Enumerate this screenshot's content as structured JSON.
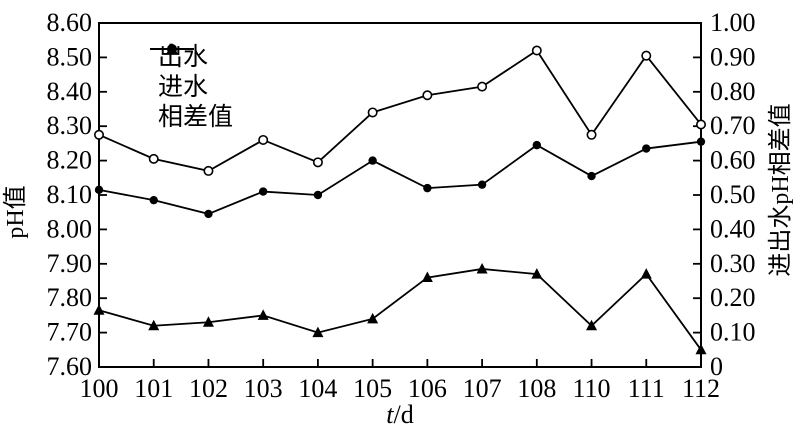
{
  "figure": {
    "background": "#ffffff",
    "ink_color": "#000000",
    "left_axis": {
      "title": "pH值",
      "tick_labels": [
        "8.60",
        "8.50",
        "8.40",
        "8.30",
        "8.20",
        "8.10",
        "8.00",
        "7.90",
        "7.80",
        "7.70",
        "7.60"
      ]
    },
    "right_axis": {
      "title": "进出水pH相差值",
      "tick_labels": [
        "1.00",
        "0.90",
        "0.80",
        "0.70",
        "0.60",
        "0.50",
        "0.40",
        "0.30",
        "0.20",
        "0.10",
        "0"
      ]
    },
    "x_axis": {
      "title_var": "t",
      "title_unit": "/d",
      "tick_labels": [
        "100",
        "101",
        "102",
        "103",
        "104",
        "105",
        "106",
        "107",
        "108",
        "110",
        "111",
        "112"
      ]
    },
    "legend": [
      {
        "label": "出水",
        "marker": "circle-open"
      },
      {
        "label": "进水",
        "marker": "circle-filled"
      },
      {
        "label": "相差值",
        "marker": "triangle-filled"
      }
    ]
  },
  "chart_data": {
    "type": "line",
    "title": "",
    "xlabel": "t/d",
    "ylabel_left": "pH值",
    "ylabel_right": "进出水pH相差值",
    "categories": [
      100,
      101,
      102,
      103,
      104,
      105,
      106,
      107,
      108,
      110,
      111,
      112
    ],
    "x_tick_labels": [
      "100",
      "101",
      "102",
      "103",
      "104",
      "105",
      "106",
      "107",
      "108",
      "110",
      "111",
      "112"
    ],
    "ylim_left": [
      7.6,
      8.6
    ],
    "ylim_right": [
      0.0,
      1.0
    ],
    "ytick_step_left": 0.1,
    "ytick_step_right": 0.1,
    "grid": false,
    "legend_position": "top-left-inside",
    "series": [
      {
        "name": "出水",
        "axis": "left",
        "marker": "circle-open",
        "values": [
          8.275,
          8.205,
          8.17,
          8.26,
          8.195,
          8.34,
          8.39,
          8.415,
          8.52,
          8.275,
          8.505,
          8.305
        ]
      },
      {
        "name": "进水",
        "axis": "left",
        "marker": "circle-filled",
        "values": [
          8.115,
          8.085,
          8.045,
          8.11,
          8.1,
          8.2,
          8.12,
          8.13,
          8.245,
          8.155,
          8.235,
          8.255
        ]
      },
      {
        "name": "相差值",
        "axis": "right",
        "marker": "triangle-filled",
        "values": [
          0.165,
          0.12,
          0.13,
          0.15,
          0.1,
          0.14,
          0.26,
          0.285,
          0.27,
          0.12,
          0.27,
          0.05
        ]
      }
    ]
  }
}
